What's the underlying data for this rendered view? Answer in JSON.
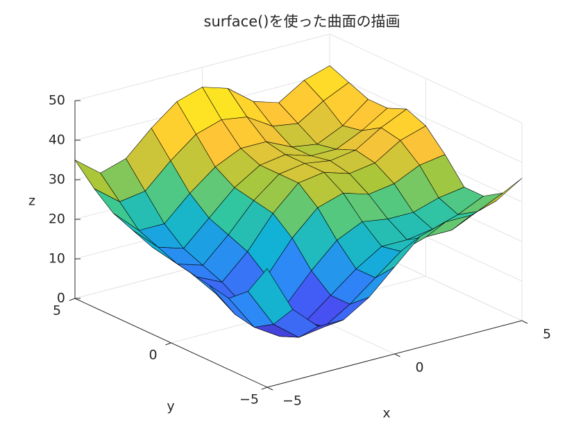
{
  "chart_data": {
    "type": "surface",
    "title": "surface()を使った曲面の描画",
    "x_label": "x",
    "y_label": "y",
    "z_label": "z",
    "x": [
      -5,
      -4,
      -3,
      -2,
      -1,
      0,
      1,
      2,
      3,
      4,
      5
    ],
    "y": [
      -5,
      -4,
      -3,
      -2,
      -1,
      0,
      1,
      2,
      3,
      4,
      5
    ],
    "z": [
      [
        30,
        18,
        12,
        12,
        16,
        22,
        28,
        30,
        30,
        32,
        36
      ],
      [
        22,
        12,
        7,
        8,
        12,
        17,
        22,
        24,
        24,
        27,
        30
      ],
      [
        18,
        9,
        5,
        7,
        12,
        17,
        21,
        21,
        22,
        24,
        27
      ],
      [
        19,
        10,
        6,
        9,
        16,
        22,
        25,
        24,
        24,
        26,
        27
      ],
      [
        20,
        13,
        9,
        14,
        22,
        28,
        30,
        28,
        29,
        32,
        33
      ],
      [
        21,
        15,
        12,
        18,
        26,
        32,
        33,
        31,
        32,
        36,
        38
      ],
      [
        22,
        16,
        14,
        20,
        27,
        32,
        33,
        32,
        33,
        37,
        40
      ],
      [
        24,
        18,
        16,
        22,
        28,
        32,
        33,
        31,
        31,
        34,
        38
      ],
      [
        26,
        20,
        20,
        26,
        31,
        34,
        34,
        31,
        30,
        33,
        38
      ],
      [
        30,
        25,
        26,
        32,
        37,
        39,
        38,
        34,
        33,
        37,
        40
      ],
      [
        35,
        30,
        32,
        38,
        43,
        45,
        43,
        38,
        36,
        40,
        42
      ]
    ],
    "xlim": [
      -5,
      5
    ],
    "ylim": [
      -5,
      5
    ],
    "zlim": [
      0,
      50
    ],
    "xticks": [
      {
        "value": -5,
        "label": "−5"
      },
      0,
      5
    ],
    "yticks": [
      {
        "value": -5,
        "label": "−5"
      },
      0,
      5
    ],
    "zticks": [
      0,
      10,
      20,
      30,
      40,
      50
    ],
    "grid": true,
    "edge_color": "#000000"
  }
}
